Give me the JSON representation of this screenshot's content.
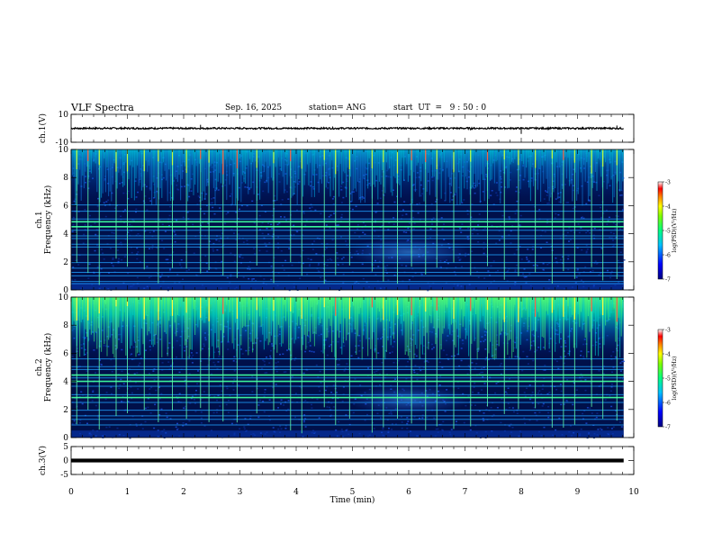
{
  "header": {
    "title": "VLF Spectra",
    "date": "Sep. 16, 2025",
    "station": "station= ANG",
    "start": "start  UT  =   9 : 50 : 0"
  },
  "colors": {
    "spectrogram_background": "#00104a",
    "colormap": [
      "#00008f",
      "#0000ff",
      "#0080ff",
      "#00ffff",
      "#80ff80",
      "#ffff00",
      "#ff8000",
      "#ff0000",
      "#800000"
    ]
  },
  "chart_data": [
    {
      "type": "line",
      "name": "ch1-waveform",
      "ylabel": "ch.1(V)",
      "ylim": [
        -10,
        10
      ],
      "yticks": [
        "10",
        "-10"
      ],
      "baseline": 0,
      "noise_amplitude": 0.6,
      "spikes": [
        {
          "x": 2.3,
          "y": 2.5
        },
        {
          "x": 7.1,
          "y": -1.5
        },
        {
          "x": 8.0,
          "y": -4.0
        },
        {
          "x": 9.7,
          "y": 2.0
        }
      ],
      "xlim": [
        0,
        10
      ]
    },
    {
      "type": "heatmap",
      "name": "ch1-spectrogram",
      "ylabel_top": "ch.1",
      "ylabel": "Frequency  (kHz)",
      "ylim": [
        0,
        10
      ],
      "yticks": [
        "0",
        "2",
        "4",
        "6",
        "8",
        "10"
      ],
      "data_end_min": 9.82,
      "horizontal_lines_khz": [
        0.45,
        0.6,
        1.0,
        1.25,
        1.55,
        1.95,
        2.5,
        3.05,
        3.25,
        3.65,
        3.85,
        4.25,
        4.5,
        4.85,
        5.05,
        5.6,
        6.05
      ],
      "bright_lines_khz": [
        4.5,
        4.85
      ],
      "vertical_events_min": [
        0.1,
        0.3,
        0.5,
        0.8,
        1.0,
        1.3,
        1.55,
        1.8,
        2.05,
        2.3,
        2.45,
        2.7,
        2.95,
        3.3,
        3.6,
        3.9,
        4.1,
        4.5,
        4.7,
        4.95,
        5.35,
        5.55,
        5.8,
        6.05,
        6.3,
        6.5,
        6.8,
        7.1,
        7.4,
        7.7,
        7.95,
        8.25,
        8.55,
        8.75,
        8.95,
        9.25,
        9.45,
        9.7
      ],
      "colorbar": {
        "label": "log(PSD)(V²/Hz)",
        "range": [
          -7,
          -3
        ],
        "ticks": [
          "-3",
          "-4",
          "-5",
          "-6",
          "-7"
        ]
      },
      "xlim": [
        0,
        10
      ]
    },
    {
      "type": "heatmap",
      "name": "ch2-spectrogram",
      "ylabel_top": "ch.2",
      "ylabel": "Frequency  (kHz)",
      "ylim": [
        0,
        10
      ],
      "yticks": [
        "0",
        "2",
        "4",
        "6",
        "8",
        "10"
      ],
      "data_end_min": 9.82,
      "horizontal_lines_khz": [
        0.9,
        1.3,
        1.55,
        1.95,
        2.5,
        2.85,
        3.05,
        3.65,
        4.0,
        4.25,
        4.45,
        4.85,
        5.05,
        5.6
      ],
      "bright_lines_khz": [
        2.85,
        4.0,
        4.45
      ],
      "vertical_events_min": [
        0.1,
        0.3,
        0.5,
        0.8,
        1.0,
        1.3,
        1.55,
        1.8,
        2.05,
        2.3,
        2.45,
        2.7,
        2.95,
        3.3,
        3.6,
        3.9,
        4.1,
        4.5,
        4.7,
        4.95,
        5.35,
        5.55,
        5.8,
        6.05,
        6.3,
        6.5,
        6.8,
        7.1,
        7.4,
        7.7,
        7.95,
        8.25,
        8.55,
        8.75,
        8.95,
        9.25,
        9.45,
        9.7
      ],
      "colorbar": {
        "label": "log(PSD)(V²/Hz)",
        "range": [
          -7,
          -3
        ],
        "ticks": [
          "-3",
          "-4",
          "-5",
          "-6",
          "-7"
        ]
      },
      "xlim": [
        0,
        10
      ]
    },
    {
      "type": "line",
      "name": "ch3-waveform",
      "ylabel": "ch.3(V)",
      "ylim": [
        -5,
        5
      ],
      "yticks": [
        "5",
        "0",
        "-5"
      ],
      "baseline": 0,
      "thickness_v": 0.7,
      "xlim": [
        0,
        10
      ]
    }
  ],
  "xaxis": {
    "label": "Time  (min)",
    "range": [
      0,
      10
    ],
    "ticks": [
      "0",
      "1",
      "2",
      "3",
      "4",
      "5",
      "6",
      "7",
      "8",
      "9",
      "10"
    ]
  }
}
